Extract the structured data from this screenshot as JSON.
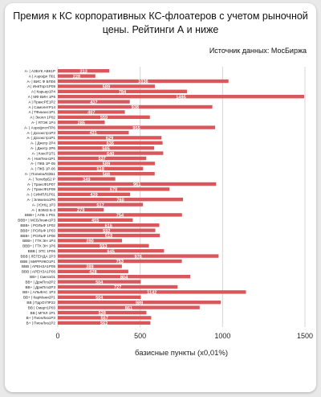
{
  "title": "Премия к КС корпоративных КС-флоатеров с учетом рыночной цены. Рейтинги А и ниже",
  "source": "Источник данных: МосБиржа",
  "colors": {
    "bar": "#d9575a",
    "label": "#ffffff",
    "grid": "#d4d4d4"
  },
  "chart_data": {
    "type": "bar",
    "orientation": "horizontal",
    "title": "Премия к КС корпоративных КС-флоатеров с учетом рыночной цены. Рейтинги А и ниже",
    "xlabel": "базисные пункты (х0,01%)",
    "ylabel": "",
    "xlim": [
      0,
      1500
    ],
    "xticks": [
      0,
      500,
      1000,
      1500
    ],
    "grid": true,
    "categories": [
      "A- | АЗБУК АВК1Р",
      "A | Аэрофл П01",
      "A- | ВИС Ф БП06",
      "A | ИнвТорг1Р09",
      "A | Карьер1Р4",
      "A | МФ ВИН 1Р6",
      "A | ПраксРЕ1Р2",
      "A | СамолетР14",
      "A | ТФинанс1Р1",
      "A | Экопл 1Р02",
      "A- | ЯТЭК 1Р4",
      "A- | АэрофлотПР6",
      "A- | Дозэкстр1Р3",
      "A- | Дозэкстр1Р1",
      "A- | Джетр 2Р4",
      "A- | Джетр 2Р6",
      "A- | КоксР1П1",
      "A- | НовТехн1Р1",
      "A- | ПКБ 1Р-05",
      "A- | ПКБ 1Р-06",
      "A- | ПолипаЛ3ЗБ1",
      "A- | ТелебрБ2 Р",
      "A- | ТрансФ1Р07",
      "A- | ТрансФ1Р09",
      "A- | СИМПЛ1Р01",
      "A- | Элемлиз1Р6",
      "A- | ЮНЦ 1Р3",
      "A- | ВЭМЗ Б-3",
      "BBB+ | АЛБ 1 Р01",
      "BBB+ | МСБЛизин1Р3",
      "BBB+ | РОЛЬФ 1Р02",
      "BBB+ | РОЛЬФ 1Р03",
      "BBB+ | РОЛЬФ 1Р06",
      "BBB+ | ГТК ЭН 1Р4",
      "BBB+ | ГТК ЭН 1Р6",
      "BBB | ЭТС 1Р06",
      "BBB | ЛЕГЕНДА 2Р3",
      "BBB | МИРРИКО1Р1",
      "BBB | АРЕНЗА1Р05",
      "BBB | АРЕНЗА1Р06",
      "BB+ | СмегаО1",
      "BB+ | ДржПлз2Р2",
      "BB+ | ДржПлз2Р3",
      "BB+ | АЛЬФАС 1Р3",
      "BB+ | КарМани2Р1",
      "BB | ПдрОтПР22",
      "BB | Смарт1Р03",
      "BB | МГКЛ 1Р1",
      "B+ | ПионЛиз1Р3",
      "B+ | ПионЛиз1Р2"
    ],
    "values": [
      313,
      228,
      1036,
      589,
      784,
      1495,
      437,
      938,
      407,
      559,
      285,
      955,
      431,
      629,
      636,
      585,
      640,
      537,
      589,
      518,
      588,
      349,
      961,
      678,
      439,
      760,
      517,
      279,
      754,
      455,
      616,
      592,
      619,
      390,
      553,
      645,
      976,
      753,
      389,
      428,
      804,
      504,
      727,
      1142,
      504,
      989,
      861,
      538,
      567,
      562
    ],
    "data_labels": [
      "313",
      "228",
      "1036",
      "589",
      "784",
      "1495",
      "437",
      "938",
      "407",
      "559",
      "285",
      "955",
      "431",
      "629",
      "636",
      "585",
      "640",
      "537",
      "589",
      "518",
      "588",
      "349",
      "961",
      "678",
      "439",
      "760",
      "517",
      "279",
      "754",
      "455",
      "616",
      "592",
      "619",
      "390",
      "553",
      "645",
      "976",
      "753",
      "389",
      "428",
      "804",
      "504",
      "727",
      "1142",
      "504",
      "989",
      "861",
      "538",
      "567",
      "562"
    ]
  }
}
